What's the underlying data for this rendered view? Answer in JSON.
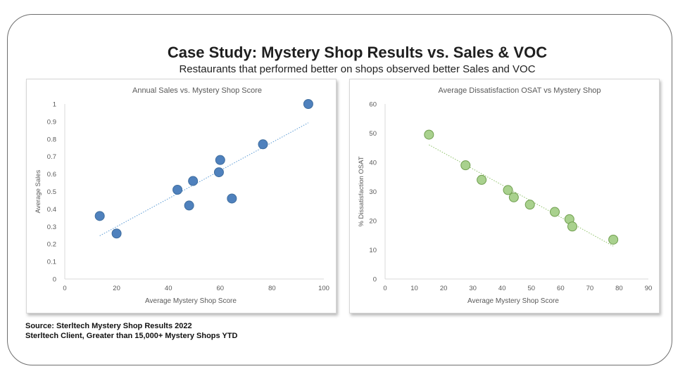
{
  "header": {
    "title": "Case Study: Mystery Shop Results vs. Sales & VOC",
    "subtitle": "Restaurants that performed better on shops observed better Sales and VOC"
  },
  "footer": {
    "source_line1": "Source: Sterltech Mystery Shop Results 2022",
    "source_line2": "Sterltech Client, Greater than 15,000+ Mystery Shops YTD"
  },
  "chart_data": [
    {
      "type": "scatter",
      "title": "Annual Sales vs. Mystery Shop Score",
      "xlabel": "Average Mystery Shop Score",
      "ylabel": "Average Sales",
      "xlim": [
        0,
        100
      ],
      "ylim": [
        0,
        1
      ],
      "xticks": [
        "0",
        "20",
        "40",
        "60",
        "80",
        "100"
      ],
      "yticks": [
        "0",
        "0.1",
        "0.2",
        "0.3",
        "0.4",
        "0.5",
        "0.6",
        "0.7",
        "0.8",
        "0.9",
        "1"
      ],
      "grid": false,
      "trendline": true,
      "color": "#4f81bd",
      "points": [
        {
          "x": 13.5,
          "y": 0.36
        },
        {
          "x": 20,
          "y": 0.26
        },
        {
          "x": 43.5,
          "y": 0.51
        },
        {
          "x": 48,
          "y": 0.42
        },
        {
          "x": 49.5,
          "y": 0.56
        },
        {
          "x": 59.5,
          "y": 0.61
        },
        {
          "x": 60,
          "y": 0.68
        },
        {
          "x": 64.5,
          "y": 0.46
        },
        {
          "x": 76.5,
          "y": 0.77
        },
        {
          "x": 94,
          "y": 1.0
        }
      ]
    },
    {
      "type": "scatter",
      "title": "Average Dissatisfaction OSAT vs Mystery Shop",
      "xlabel": "Average Mystery Shop Score",
      "ylabel": "% Dissatisfaction OSAT",
      "xlim": [
        0,
        90
      ],
      "ylim": [
        0,
        60
      ],
      "xticks": [
        "0",
        "10",
        "20",
        "30",
        "40",
        "50",
        "60",
        "70",
        "80",
        "90"
      ],
      "yticks": [
        "0",
        "10",
        "20",
        "30",
        "40",
        "50",
        "60"
      ],
      "grid": false,
      "trendline": true,
      "color": "#a9d18e",
      "points": [
        {
          "x": 15,
          "y": 49.5
        },
        {
          "x": 27.5,
          "y": 39
        },
        {
          "x": 33,
          "y": 34
        },
        {
          "x": 42,
          "y": 30.5
        },
        {
          "x": 44,
          "y": 28
        },
        {
          "x": 49.5,
          "y": 25.5
        },
        {
          "x": 58,
          "y": 23
        },
        {
          "x": 63,
          "y": 20.5
        },
        {
          "x": 64,
          "y": 18
        },
        {
          "x": 78,
          "y": 13.5
        }
      ]
    }
  ]
}
